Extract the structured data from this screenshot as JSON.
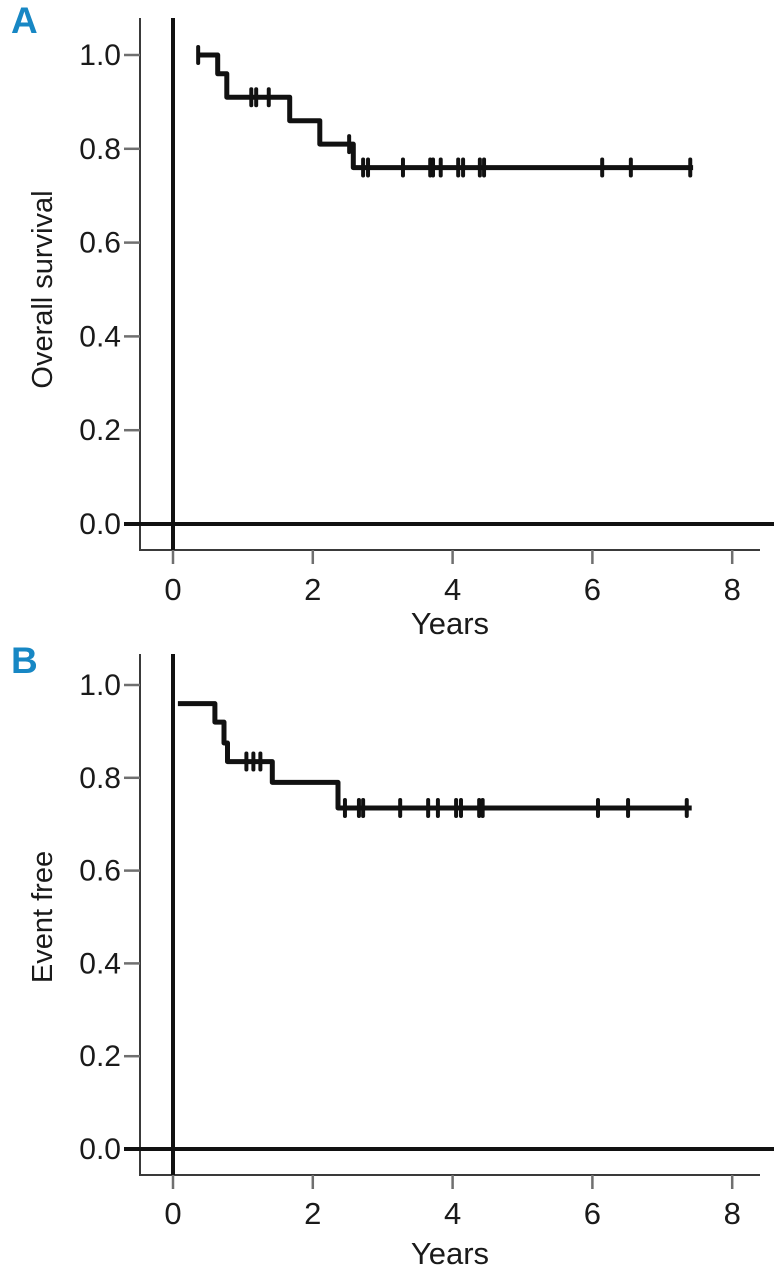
{
  "figure": {
    "panels": [
      {
        "label": "A",
        "ylabel": "Overall survival",
        "xlabel": "Years"
      },
      {
        "label": "B",
        "ylabel": "Event free",
        "xlabel": "Years"
      }
    ],
    "panel_label_color": "#1787c4",
    "curve_color": "#111111",
    "axis_color": "#111111",
    "frame_color": "#3a3a3a",
    "tick_color": "#6f6f6f",
    "text_color": "#1a1a1a"
  },
  "chart_data": [
    {
      "type": "line",
      "subtype": "kaplan_meier_step",
      "panel": "A",
      "title": "",
      "xlabel": "Years",
      "ylabel": "Overall survival",
      "xlim": [
        -0.5,
        8.5
      ],
      "ylim": [
        -0.05,
        1.05
      ],
      "x_ticks": [
        0,
        2,
        4,
        6,
        8
      ],
      "y_ticks": [
        0.0,
        0.2,
        0.4,
        0.6,
        0.8,
        1.0
      ],
      "grid": false,
      "legend_position": "none",
      "km_steps": [
        [
          0.35,
          1.0
        ],
        [
          0.64,
          0.96
        ],
        [
          0.77,
          0.91
        ],
        [
          1.67,
          0.86
        ],
        [
          2.1,
          0.81
        ],
        [
          2.58,
          0.76
        ]
      ],
      "end_time": 7.44,
      "censor_times": [
        0.36,
        1.12,
        1.19,
        1.37,
        2.52,
        2.72,
        2.79,
        3.29,
        3.68,
        3.72,
        3.83,
        4.08,
        4.15,
        4.39,
        4.45,
        6.14,
        6.55,
        7.4
      ]
    },
    {
      "type": "line",
      "subtype": "kaplan_meier_step",
      "panel": "B",
      "title": "",
      "xlabel": "Years",
      "ylabel": "Event free",
      "xlim": [
        -0.5,
        8.5
      ],
      "ylim": [
        -0.05,
        1.05
      ],
      "x_ticks": [
        0,
        2,
        4,
        6,
        8
      ],
      "y_ticks": [
        0.0,
        0.2,
        0.4,
        0.6,
        0.8,
        1.0
      ],
      "grid": false,
      "legend_position": "none",
      "km_steps": [
        [
          0.07,
          0.96
        ],
        [
          0.6,
          0.92
        ],
        [
          0.73,
          0.875
        ],
        [
          0.78,
          0.835
        ],
        [
          1.42,
          0.79
        ],
        [
          2.36,
          0.735
        ]
      ],
      "end_time": 7.42,
      "censor_times": [
        1.05,
        1.15,
        1.25,
        2.46,
        2.66,
        2.72,
        3.25,
        3.65,
        3.79,
        4.05,
        4.12,
        4.38,
        4.43,
        6.08,
        6.51,
        7.35
      ]
    }
  ]
}
